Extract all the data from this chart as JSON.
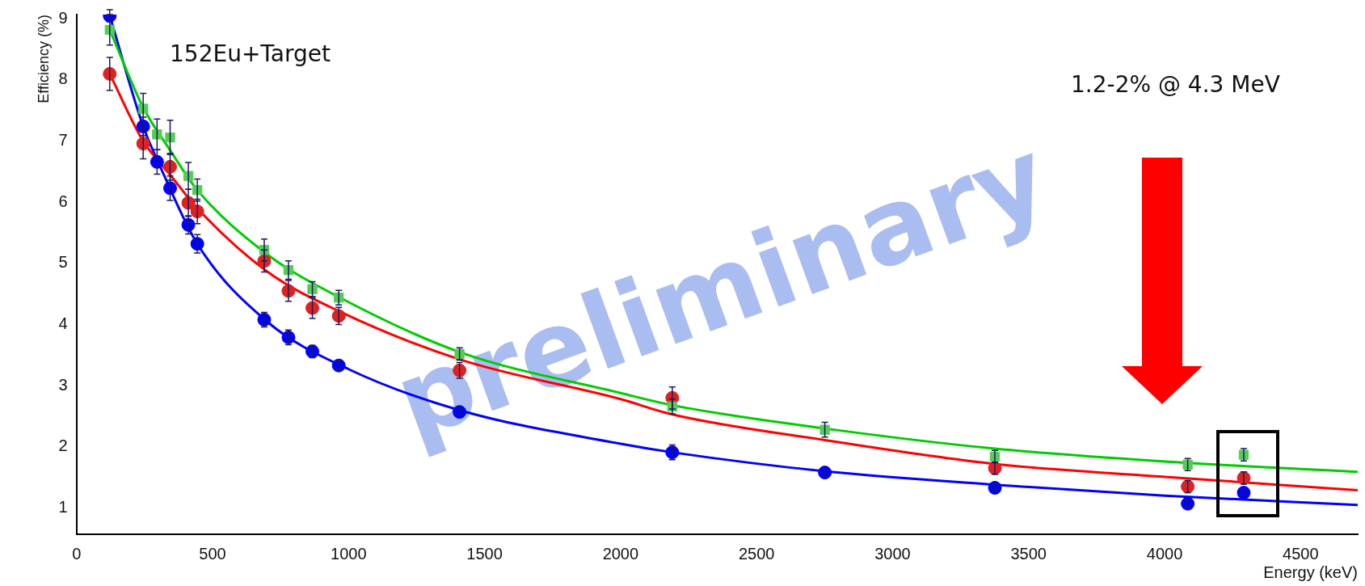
{
  "chart_data": {
    "type": "scatter",
    "xlabel": "Energy (keV)",
    "ylabel": "Efficiency (%)",
    "xlim": [
      0,
      4710
    ],
    "ylim": [
      0.57,
      9.07
    ],
    "xticks": [
      0,
      500,
      1000,
      1500,
      2000,
      2500,
      3000,
      3500,
      4000,
      4500
    ],
    "yticks": [
      1,
      2,
      3,
      4,
      5,
      6,
      7,
      8,
      9
    ],
    "grid": false,
    "legend": false,
    "annotations": [
      "152Eu+Target",
      "1.2-2% @ 4.3 MeV",
      "preliminary"
    ],
    "series": [
      {
        "type": "line",
        "color": "#00cc00",
        "x": [
          122,
          245,
          344,
          444,
          700,
          964,
          1408,
          2000,
          2190,
          2751,
          3376,
          4000,
          4710
        ],
        "values": [
          8.82,
          7.55,
          6.85,
          6.2,
          5.15,
          4.45,
          3.55,
          2.88,
          2.68,
          2.3,
          1.97,
          1.76,
          1.59
        ]
      },
      {
        "type": "line",
        "color": "#ff0000",
        "x": [
          122,
          245,
          344,
          444,
          700,
          964,
          1408,
          2000,
          2190,
          2751,
          3376,
          4000,
          4710
        ],
        "values": [
          8.1,
          7.0,
          6.45,
          5.9,
          4.87,
          4.22,
          3.43,
          2.78,
          2.53,
          2.11,
          1.72,
          1.51,
          1.29
        ]
      },
      {
        "type": "line",
        "color": "#0000ff",
        "x": [
          122,
          245,
          300,
          444,
          700,
          1000,
          1408,
          2000,
          2190,
          2751,
          3376,
          4000,
          4710
        ],
        "values": [
          9.05,
          7.24,
          6.66,
          5.32,
          4.05,
          3.27,
          2.6,
          2.05,
          1.91,
          1.6,
          1.38,
          1.2,
          1.05
        ]
      },
      {
        "type": "scatter",
        "marker": "square",
        "color": "#55cc55",
        "x": [
          122,
          245,
          296,
          344,
          411,
          444,
          690,
          779,
          867,
          964,
          1408,
          2190,
          2751,
          3376,
          4085,
          4291
        ],
        "values": [
          8.82,
          7.53,
          7.11,
          7.06,
          6.43,
          6.2,
          5.22,
          4.89,
          4.58,
          4.44,
          3.52,
          2.66,
          2.28,
          1.84,
          1.71,
          1.87
        ],
        "errors": [
          0.25,
          0.25,
          0.25,
          0.28,
          0.22,
          0.18,
          0.18,
          0.15,
          0.12,
          0.12,
          0.1,
          0.12,
          0.12,
          0.1,
          0.1,
          0.1
        ]
      },
      {
        "type": "scatter",
        "marker": "circle",
        "color": "#dd2222",
        "x": [
          122,
          245,
          344,
          411,
          444,
          690,
          779,
          867,
          964,
          1408,
          2190,
          2751,
          3376,
          4085,
          4291
        ],
        "values": [
          8.1,
          6.96,
          6.58,
          5.99,
          5.85,
          5.04,
          4.55,
          4.27,
          4.14,
          3.25,
          2.8,
          null,
          1.65,
          1.35,
          1.49
        ],
        "errors": [
          0.27,
          0.25,
          0.22,
          0.22,
          0.2,
          0.18,
          0.17,
          0.17,
          0.14,
          0.13,
          0.18,
          null,
          0.1,
          0.1,
          0.1
        ]
      },
      {
        "type": "scatter",
        "marker": "circle",
        "color": "#0000ff",
        "x": [
          122,
          245,
          296,
          344,
          411,
          444,
          690,
          779,
          867,
          964,
          1408,
          2190,
          2751,
          3376,
          4085,
          4291
        ],
        "values": [
          9.05,
          7.24,
          6.66,
          6.23,
          5.63,
          5.32,
          4.08,
          3.79,
          3.56,
          3.33,
          2.57,
          1.91,
          1.58,
          1.33,
          1.07,
          1.25
        ],
        "errors": [
          0.1,
          0.15,
          0.2,
          0.2,
          0.15,
          0.15,
          0.12,
          0.12,
          0.1,
          0.08,
          0.05,
          0.12,
          0.05,
          0.05,
          0.05,
          0.05
        ]
      }
    ]
  }
}
